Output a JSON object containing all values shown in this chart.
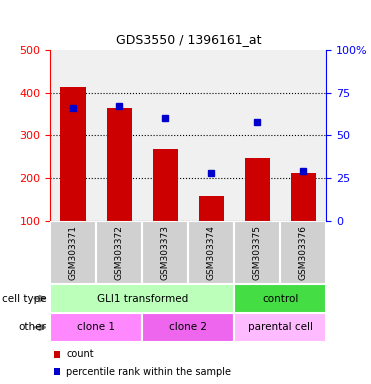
{
  "title": "GDS3550 / 1396161_at",
  "samples": [
    "GSM303371",
    "GSM303372",
    "GSM303373",
    "GSM303374",
    "GSM303375",
    "GSM303376"
  ],
  "counts": [
    413,
    365,
    268,
    157,
    248,
    213
  ],
  "percentile_ranks": [
    66,
    67,
    60,
    28,
    58,
    29
  ],
  "ylim_left": [
    100,
    500
  ],
  "ylim_right": [
    0,
    100
  ],
  "yticks_left": [
    100,
    200,
    300,
    400,
    500
  ],
  "yticks_right": [
    0,
    25,
    50,
    75,
    100
  ],
  "ytick_labels_right": [
    "0",
    "25",
    "50",
    "75",
    "100%"
  ],
  "bar_color": "#cc0000",
  "dot_color": "#0000cc",
  "bg_color": "#ffffff",
  "plot_bg": "#f0f0f0",
  "tick_label_bg": "#d0d0d0",
  "cell_type_groups": [
    {
      "label": "GLI1 transformed",
      "span": [
        0,
        4
      ],
      "color": "#bbffbb"
    },
    {
      "label": "control",
      "span": [
        4,
        6
      ],
      "color": "#44dd44"
    }
  ],
  "other_groups": [
    {
      "label": "clone 1",
      "span": [
        0,
        2
      ],
      "color": "#ff88ff"
    },
    {
      "label": "clone 2",
      "span": [
        2,
        4
      ],
      "color": "#ee66ee"
    },
    {
      "label": "parental cell",
      "span": [
        4,
        6
      ],
      "color": "#ffbbff"
    }
  ],
  "row_labels": [
    "cell type",
    "other"
  ],
  "legend_items": [
    {
      "color": "#cc0000",
      "label": "count"
    },
    {
      "color": "#0000cc",
      "label": "percentile rank within the sample"
    }
  ]
}
